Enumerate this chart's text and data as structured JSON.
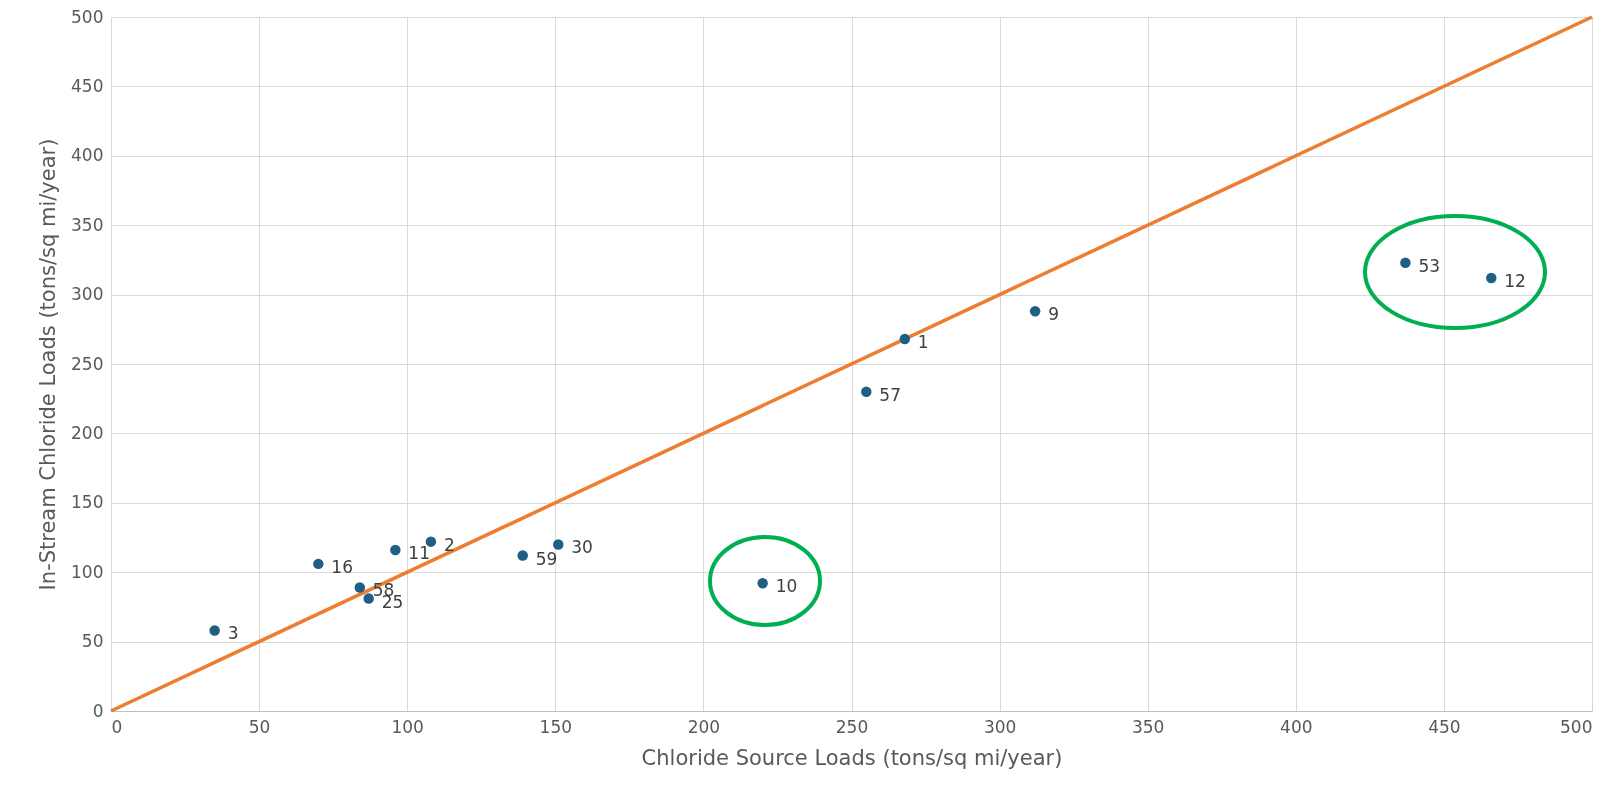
{
  "chart_data": {
    "type": "scatter",
    "xlabel": "Chloride Source Loads (tons/sq mi/year)",
    "ylabel": "In-Stream Chloride Loads (tons/sq mi/year)",
    "xlim": [
      0,
      500
    ],
    "ylim": [
      0,
      500
    ],
    "xticks": [
      0,
      50,
      100,
      150,
      200,
      250,
      300,
      350,
      400,
      450,
      500
    ],
    "yticks": [
      0,
      50,
      100,
      150,
      200,
      250,
      300,
      350,
      400,
      450,
      500
    ],
    "grid": true,
    "series": [
      {
        "marker": "circle",
        "color": "#1f5f85",
        "x": [
          35,
          70,
          84,
          87,
          96,
          108,
          139,
          151,
          220,
          255,
          268,
          312,
          437,
          466
        ],
        "values": [
          58,
          106,
          89,
          81,
          116,
          122,
          112,
          120,
          92,
          230,
          268,
          288,
          323,
          312
        ]
      },
      {
        "type": "line",
        "color": "#ed7d31",
        "x": [
          0,
          500
        ],
        "values": [
          0,
          500
        ]
      }
    ],
    "annotations": [
      {
        "text": "3",
        "x": 35,
        "y": 58
      },
      {
        "text": "16",
        "x": 70,
        "y": 106
      },
      {
        "text": "58",
        "x": 84,
        "y": 89
      },
      {
        "text": "25",
        "x": 87,
        "y": 81
      },
      {
        "text": "11",
        "x": 96,
        "y": 116
      },
      {
        "text": "2",
        "x": 108,
        "y": 122
      },
      {
        "text": "59",
        "x": 139,
        "y": 112
      },
      {
        "text": "30",
        "x": 151,
        "y": 120
      },
      {
        "text": "10",
        "x": 220,
        "y": 92
      },
      {
        "text": "57",
        "x": 255,
        "y": 230
      },
      {
        "text": "1",
        "x": 268,
        "y": 268
      },
      {
        "text": "9",
        "x": 312,
        "y": 288
      },
      {
        "text": "53",
        "x": 437,
        "y": 323
      },
      {
        "text": "12",
        "x": 466,
        "y": 312
      }
    ]
  }
}
